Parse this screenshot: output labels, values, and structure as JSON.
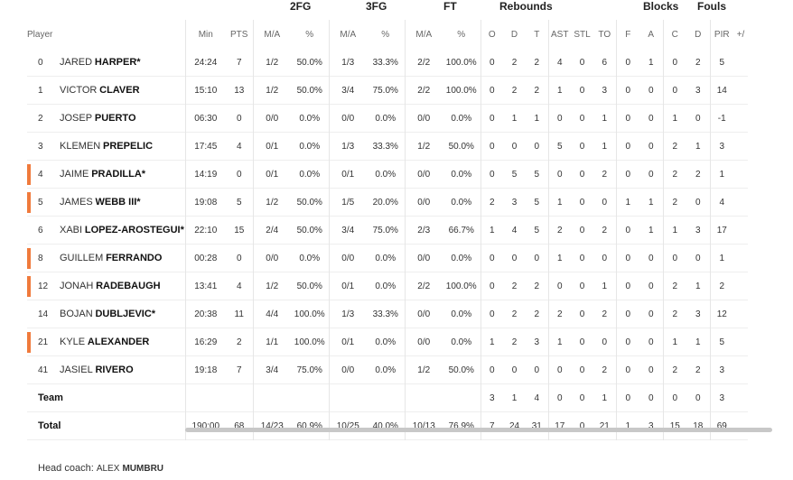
{
  "groups": {
    "fg2": "2FG",
    "fg3": "3FG",
    "ft": "FT",
    "reb": "Rebounds",
    "blocks": "Blocks",
    "fouls": "Fouls"
  },
  "headers": {
    "player": "Player",
    "min": "Min",
    "pts": "PTS",
    "fg2_ma": "M/A",
    "fg2_pct": "%",
    "fg3_ma": "M/A",
    "fg3_pct": "%",
    "ft_ma": "M/A",
    "ft_pct": "%",
    "o": "O",
    "d": "D",
    "t": "T",
    "ast": "AST",
    "stl": "STL",
    "to": "TO",
    "bf": "F",
    "ba": "A",
    "fc": "C",
    "fd": "D",
    "pir": "PIR",
    "pm": "+/"
  },
  "accent_color": "#f07a3c",
  "players": [
    {
      "no": "0",
      "first": "JARED",
      "last": "HARPER*",
      "min": "24:24",
      "pts": "7",
      "fg2": "1/2",
      "fg2p": "50.0%",
      "fg3": "1/3",
      "fg3p": "33.3%",
      "ft": "2/2",
      "ftp": "100.0%",
      "o": "0",
      "d": "2",
      "t": "2",
      "ast": "4",
      "stl": "0",
      "to": "6",
      "bf": "0",
      "ba": "1",
      "fc": "0",
      "fd": "2",
      "pir": "5",
      "bar": false
    },
    {
      "no": "1",
      "first": "VICTOR",
      "last": "CLAVER",
      "min": "15:10",
      "pts": "13",
      "fg2": "1/2",
      "fg2p": "50.0%",
      "fg3": "3/4",
      "fg3p": "75.0%",
      "ft": "2/2",
      "ftp": "100.0%",
      "o": "0",
      "d": "2",
      "t": "2",
      "ast": "1",
      "stl": "0",
      "to": "3",
      "bf": "0",
      "ba": "0",
      "fc": "0",
      "fd": "3",
      "pir": "14",
      "bar": false
    },
    {
      "no": "2",
      "first": "JOSEP",
      "last": "PUERTO",
      "min": "06:30",
      "pts": "0",
      "fg2": "0/0",
      "fg2p": "0.0%",
      "fg3": "0/0",
      "fg3p": "0.0%",
      "ft": "0/0",
      "ftp": "0.0%",
      "o": "0",
      "d": "1",
      "t": "1",
      "ast": "0",
      "stl": "0",
      "to": "1",
      "bf": "0",
      "ba": "0",
      "fc": "1",
      "fd": "0",
      "pir": "-1",
      "bar": false
    },
    {
      "no": "3",
      "first": "KLEMEN",
      "last": "PREPELIC",
      "min": "17:45",
      "pts": "4",
      "fg2": "0/1",
      "fg2p": "0.0%",
      "fg3": "1/3",
      "fg3p": "33.3%",
      "ft": "1/2",
      "ftp": "50.0%",
      "o": "0",
      "d": "0",
      "t": "0",
      "ast": "5",
      "stl": "0",
      "to": "1",
      "bf": "0",
      "ba": "0",
      "fc": "2",
      "fd": "1",
      "pir": "3",
      "bar": false
    },
    {
      "no": "4",
      "first": "JAIME",
      "last": "PRADILLA*",
      "min": "14:19",
      "pts": "0",
      "fg2": "0/1",
      "fg2p": "0.0%",
      "fg3": "0/1",
      "fg3p": "0.0%",
      "ft": "0/0",
      "ftp": "0.0%",
      "o": "0",
      "d": "5",
      "t": "5",
      "ast": "0",
      "stl": "0",
      "to": "2",
      "bf": "0",
      "ba": "0",
      "fc": "2",
      "fd": "2",
      "pir": "1",
      "bar": true
    },
    {
      "no": "5",
      "first": "JAMES",
      "last": "WEBB III*",
      "min": "19:08",
      "pts": "5",
      "fg2": "1/2",
      "fg2p": "50.0%",
      "fg3": "1/5",
      "fg3p": "20.0%",
      "ft": "0/0",
      "ftp": "0.0%",
      "o": "2",
      "d": "3",
      "t": "5",
      "ast": "1",
      "stl": "0",
      "to": "0",
      "bf": "1",
      "ba": "1",
      "fc": "2",
      "fd": "0",
      "pir": "4",
      "bar": true
    },
    {
      "no": "6",
      "first": "XABI",
      "last": "LOPEZ-AROSTEGUI*",
      "min": "22:10",
      "pts": "15",
      "fg2": "2/4",
      "fg2p": "50.0%",
      "fg3": "3/4",
      "fg3p": "75.0%",
      "ft": "2/3",
      "ftp": "66.7%",
      "o": "1",
      "d": "4",
      "t": "5",
      "ast": "2",
      "stl": "0",
      "to": "2",
      "bf": "0",
      "ba": "1",
      "fc": "1",
      "fd": "3",
      "pir": "17",
      "bar": false
    },
    {
      "no": "8",
      "first": "GUILLEM",
      "last": "FERRANDO",
      "min": "00:28",
      "pts": "0",
      "fg2": "0/0",
      "fg2p": "0.0%",
      "fg3": "0/0",
      "fg3p": "0.0%",
      "ft": "0/0",
      "ftp": "0.0%",
      "o": "0",
      "d": "0",
      "t": "0",
      "ast": "1",
      "stl": "0",
      "to": "0",
      "bf": "0",
      "ba": "0",
      "fc": "0",
      "fd": "0",
      "pir": "1",
      "bar": true
    },
    {
      "no": "12",
      "first": "JONAH",
      "last": "RADEBAUGH",
      "min": "13:41",
      "pts": "4",
      "fg2": "1/2",
      "fg2p": "50.0%",
      "fg3": "0/1",
      "fg3p": "0.0%",
      "ft": "2/2",
      "ftp": "100.0%",
      "o": "0",
      "d": "2",
      "t": "2",
      "ast": "0",
      "stl": "0",
      "to": "1",
      "bf": "0",
      "ba": "0",
      "fc": "2",
      "fd": "1",
      "pir": "2",
      "bar": true
    },
    {
      "no": "14",
      "first": "BOJAN",
      "last": "DUBLJEVIC*",
      "min": "20:38",
      "pts": "11",
      "fg2": "4/4",
      "fg2p": "100.0%",
      "fg3": "1/3",
      "fg3p": "33.3%",
      "ft": "0/0",
      "ftp": "0.0%",
      "o": "0",
      "d": "2",
      "t": "2",
      "ast": "2",
      "stl": "0",
      "to": "2",
      "bf": "0",
      "ba": "0",
      "fc": "2",
      "fd": "3",
      "pir": "12",
      "bar": false
    },
    {
      "no": "21",
      "first": "KYLE",
      "last": "ALEXANDER",
      "min": "16:29",
      "pts": "2",
      "fg2": "1/1",
      "fg2p": "100.0%",
      "fg3": "0/1",
      "fg3p": "0.0%",
      "ft": "0/0",
      "ftp": "0.0%",
      "o": "1",
      "d": "2",
      "t": "3",
      "ast": "1",
      "stl": "0",
      "to": "0",
      "bf": "0",
      "ba": "0",
      "fc": "1",
      "fd": "1",
      "pir": "5",
      "bar": true
    },
    {
      "no": "41",
      "first": "JASIEL",
      "last": "RIVERO",
      "min": "19:18",
      "pts": "7",
      "fg2": "3/4",
      "fg2p": "75.0%",
      "fg3": "0/0",
      "fg3p": "0.0%",
      "ft": "1/2",
      "ftp": "50.0%",
      "o": "0",
      "d": "0",
      "t": "0",
      "ast": "0",
      "stl": "0",
      "to": "2",
      "bf": "0",
      "ba": "0",
      "fc": "2",
      "fd": "2",
      "pir": "3",
      "bar": false
    }
  ],
  "team": {
    "label": "Team",
    "o": "3",
    "d": "1",
    "t": "4",
    "ast": "0",
    "stl": "0",
    "to": "1",
    "bf": "0",
    "ba": "0",
    "fc": "0",
    "fd": "0",
    "pir": "3"
  },
  "total": {
    "label": "Total",
    "min": "190:00",
    "pts": "68",
    "fg2": "14/23",
    "fg2p": "60.9%",
    "fg3": "10/25",
    "fg3p": "40.0%",
    "ft": "10/13",
    "ftp": "76.9%",
    "o": "7",
    "d": "24",
    "t": "31",
    "ast": "17",
    "stl": "0",
    "to": "21",
    "bf": "1",
    "ba": "3",
    "fc": "15",
    "fd": "18",
    "pir": "69"
  },
  "coach": {
    "label": "Head coach:",
    "first": "ALEX",
    "last": "MUMBRU"
  }
}
